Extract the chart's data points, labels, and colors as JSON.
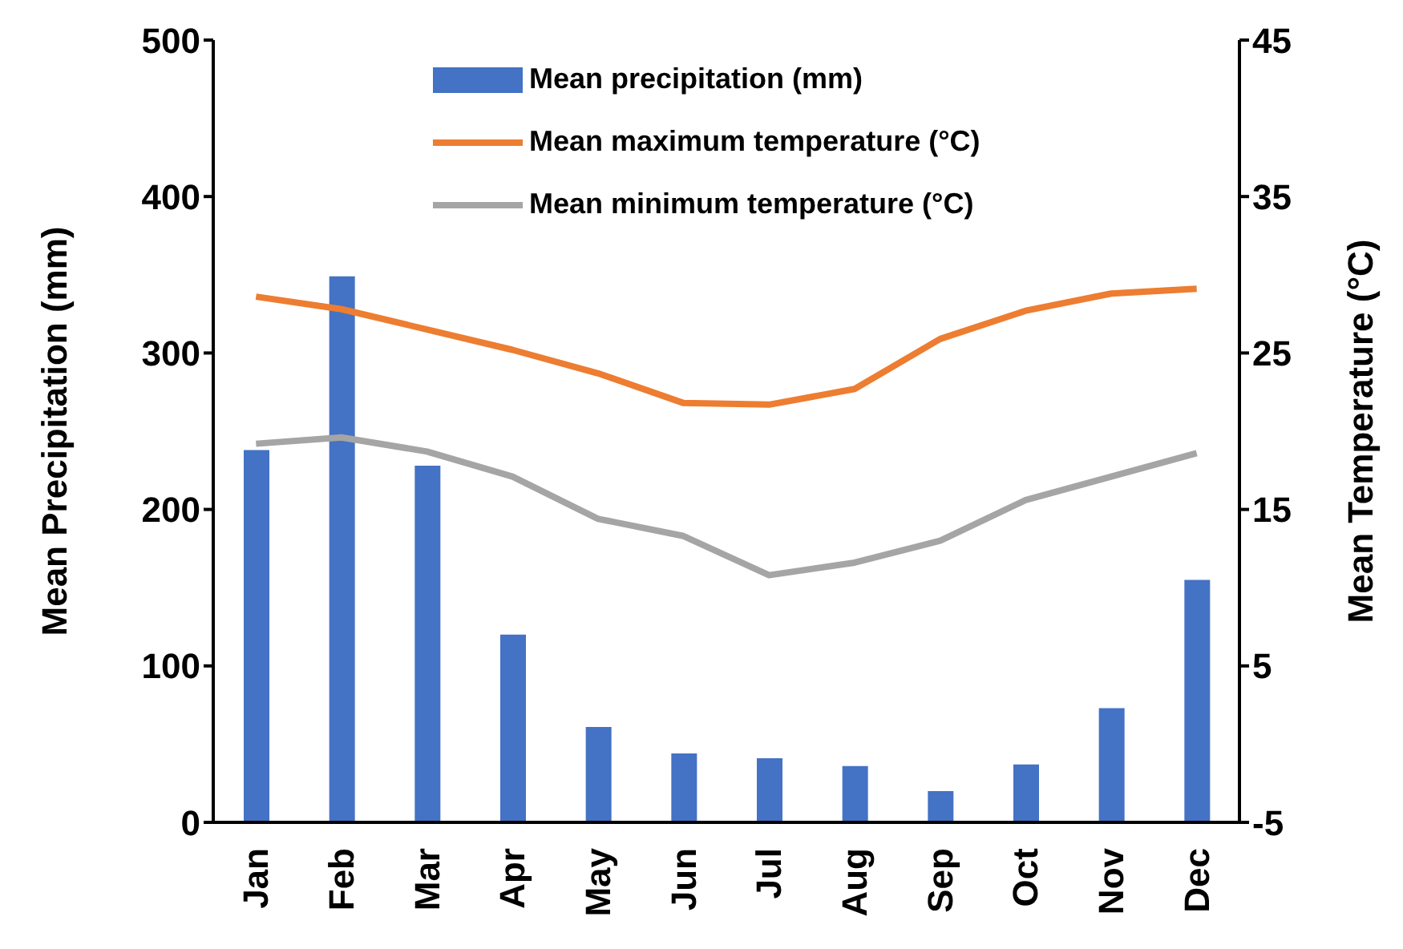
{
  "chart_data": {
    "type": "bar",
    "ylabel": "Mean Precipitation (mm)",
    "y2label": "Mean Temperature (°C)",
    "categories": [
      "Jan",
      "Feb",
      "Mar",
      "Apr",
      "May",
      "Jun",
      "Jul",
      "Aug",
      "Sep",
      "Oct",
      "Nov",
      "Dec"
    ],
    "series": [
      {
        "name": "Mean precipitation (mm)",
        "color": "#4472c4",
        "values": [
          238,
          349,
          228,
          120,
          61,
          44,
          41,
          36,
          20,
          37,
          73,
          155
        ]
      },
      {
        "name": "Mean maximum temperature (°C)",
        "type": "line",
        "axis": "y2",
        "color": "#ed7d31",
        "values": [
          28.6,
          27.8,
          26.5,
          25.2,
          23.7,
          21.8,
          21.7,
          22.7,
          25.9,
          27.7,
          28.8,
          29.1
        ]
      },
      {
        "name": "Mean minimum temperature (°C)",
        "type": "line",
        "axis": "y2",
        "color": "#a5a5a5",
        "values": [
          19.2,
          19.6,
          18.7,
          17.1,
          14.4,
          13.3,
          10.8,
          11.6,
          13.0,
          15.6,
          17.1,
          18.6
        ]
      }
    ],
    "ylim": [
      0,
      500
    ],
    "yticks": [
      0,
      100,
      200,
      300,
      400,
      500
    ],
    "y2lim": [
      -5,
      45
    ],
    "y2ticks": [
      -5,
      5,
      15,
      25,
      35,
      45
    ],
    "grid": false,
    "legend": "top",
    "marker": "none",
    "line_style": "solid"
  }
}
